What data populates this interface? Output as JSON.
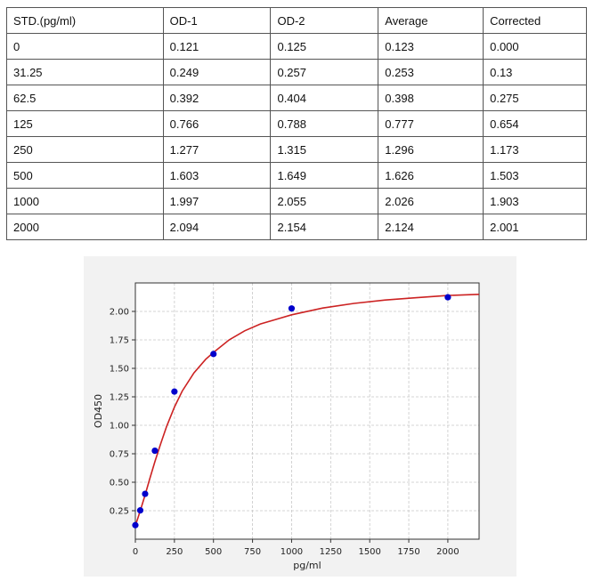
{
  "table": {
    "header": [
      "STD.(pg/ml)",
      "OD-1",
      "OD-2",
      "Average",
      "Corrected"
    ],
    "rows": [
      [
        "0",
        "0.121",
        "0.125",
        "0.123",
        "0.000"
      ],
      [
        "31.25",
        "0.249",
        "0.257",
        "0.253",
        "0.13"
      ],
      [
        "62.5",
        "0.392",
        "0.404",
        "0.398",
        "0.275"
      ],
      [
        "125",
        "0.766",
        "0.788",
        "0.777",
        "0.654"
      ],
      [
        "250",
        "1.277",
        "1.315",
        "1.296",
        "1.173"
      ],
      [
        "500",
        "1.603",
        "1.649",
        "1.626",
        "1.503"
      ],
      [
        "1000",
        "1.997",
        "2.055",
        "2.026",
        "1.903"
      ],
      [
        "2000",
        "2.094",
        "2.154",
        "2.124",
        "2.001"
      ]
    ]
  },
  "chart_data": {
    "type": "scatter",
    "title": "",
    "xlabel": "pg/ml",
    "ylabel": "OD450",
    "xlim": [
      0,
      2200
    ],
    "ylim": [
      0,
      2.25
    ],
    "xticks": [
      0,
      250,
      500,
      750,
      1000,
      1250,
      1500,
      1750,
      2000
    ],
    "yticks": [
      0.25,
      0.5,
      0.75,
      1.0,
      1.25,
      1.5,
      1.75,
      2.0
    ],
    "ytick_labels": [
      "0.25",
      "0.50",
      "0.75",
      "1.00",
      "1.25",
      "1.50",
      "1.75",
      "2.00"
    ],
    "grid": true,
    "series": [
      {
        "x": [
          0,
          31.25,
          62.5,
          125,
          250,
          500,
          1000,
          2000
        ],
        "y": [
          0.123,
          0.253,
          0.398,
          0.777,
          1.296,
          1.626,
          2.026,
          2.124
        ],
        "marker_color": "#0000cc"
      }
    ],
    "fit_curve": {
      "type": "four-parameter logistic",
      "color": "#cc2222",
      "x": [
        0,
        15,
        31.25,
        45,
        62.5,
        90,
        125,
        160,
        200,
        250,
        300,
        375,
        450,
        500,
        600,
        700,
        800,
        900,
        1000,
        1200,
        1400,
        1600,
        1800,
        2000,
        2200
      ],
      "y": [
        0.12,
        0.18,
        0.25,
        0.31,
        0.39,
        0.52,
        0.68,
        0.83,
        0.99,
        1.16,
        1.3,
        1.46,
        1.58,
        1.64,
        1.75,
        1.83,
        1.89,
        1.93,
        1.97,
        2.03,
        2.07,
        2.1,
        2.12,
        2.14,
        2.15
      ]
    }
  }
}
